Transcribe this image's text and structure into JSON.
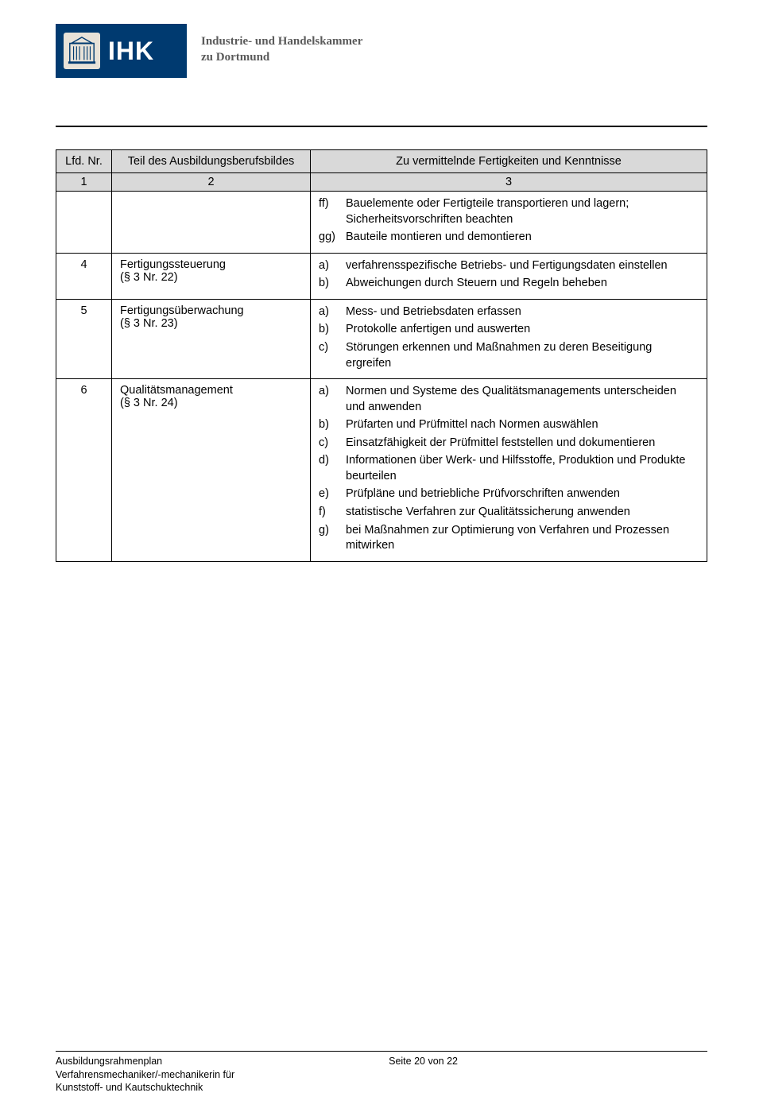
{
  "header": {
    "logo_text": "IHK",
    "org_line1": "Industrie- und Handelskammer",
    "org_line2": "zu Dortmund"
  },
  "table": {
    "headers": {
      "col1": "Lfd. Nr.",
      "col2": "Teil des Ausbildungsberufsbildes",
      "col3": "Zu vermittelnde Fertigkeiten und Kenntnisse"
    },
    "numrow": {
      "c1": "1",
      "c2": "2",
      "c3": "3"
    },
    "rows": [
      {
        "nr": "",
        "teil": "",
        "skills": [
          {
            "lbl": "ff)",
            "text": "Bauelemente oder Fertigteile transportieren und lagern; Sicherheitsvorschriften beachten"
          },
          {
            "lbl": "gg)",
            "text": "Bauteile montieren und demontieren"
          }
        ]
      },
      {
        "nr": "4",
        "teil": "Fertigungssteuerung\n(§ 3 Nr. 22)",
        "skills": [
          {
            "lbl": "a)",
            "text": "verfahrensspezifische Betriebs- und Fertigungsdaten einstellen"
          },
          {
            "lbl": "b)",
            "text": "Abweichungen durch Steuern und Regeln beheben"
          }
        ]
      },
      {
        "nr": "5",
        "teil": "Fertigungsüberwachung\n(§ 3 Nr. 23)",
        "skills": [
          {
            "lbl": "a)",
            "text": "Mess- und Betriebsdaten erfassen"
          },
          {
            "lbl": "b)",
            "text": "Protokolle anfertigen und auswerten"
          },
          {
            "lbl": "c)",
            "text": "Störungen erkennen und Maßnahmen zu deren Beseitigung ergreifen"
          }
        ]
      },
      {
        "nr": "6",
        "teil": "Qualitätsmanagement\n(§ 3 Nr. 24)",
        "skills": [
          {
            "lbl": "a)",
            "text": "Normen und Systeme des Qualitätsmanagements unterscheiden und anwenden"
          },
          {
            "lbl": "b)",
            "text": "Prüfarten und Prüfmittel nach Normen auswählen"
          },
          {
            "lbl": "c)",
            "text": "Einsatzfähigkeit der Prüfmittel feststellen und dokumentieren"
          },
          {
            "lbl": "d)",
            "text": "Informationen über Werk- und Hilfsstoffe, Produktion und Produkte beurteilen"
          },
          {
            "lbl": "e)",
            "text": "Prüfpläne und betriebliche Prüfvorschriften anwenden"
          },
          {
            "lbl": "f)",
            "text": "statistische Verfahren zur Qualitätssicherung anwenden"
          },
          {
            "lbl": "g)",
            "text": "bei Maßnahmen zur Optimierung von Verfahren und Prozessen mitwirken"
          }
        ]
      }
    ]
  },
  "footer": {
    "left_line1": "Ausbildungsrahmenplan",
    "left_line2": "Verfahrensmechaniker/-mechanikerin für",
    "left_line3": "Kunststoff- und Kautschuktechnik",
    "page": "Seite 20 von 22"
  }
}
